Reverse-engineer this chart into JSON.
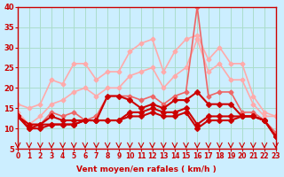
{
  "background_color": "#cceeff",
  "grid_color": "#aaddcc",
  "xlabel": "Vent moyen/en rafales ( km/h )",
  "xlim": [
    0,
    23
  ],
  "ylim": [
    5,
    40
  ],
  "yticks": [
    5,
    10,
    15,
    20,
    25,
    30,
    35,
    40
  ],
  "xticks": [
    0,
    1,
    2,
    3,
    4,
    5,
    6,
    7,
    8,
    9,
    10,
    11,
    12,
    13,
    14,
    15,
    16,
    17,
    18,
    19,
    20,
    21,
    22,
    23
  ],
  "series": [
    {
      "color": "#ffaaaa",
      "linewidth": 1.2,
      "marker": "D",
      "markersize": 2.5,
      "y": [
        16,
        15,
        16,
        22,
        21,
        26,
        26,
        22,
        24,
        24,
        29,
        31,
        32,
        24,
        29,
        32,
        33,
        27,
        30,
        26,
        26,
        18,
        14,
        13
      ]
    },
    {
      "color": "#ffaaaa",
      "linewidth": 1.2,
      "marker": "D",
      "markersize": 2.5,
      "y": [
        14,
        11,
        13,
        16,
        17,
        19,
        20,
        18,
        20,
        20,
        23,
        24,
        25,
        20,
        23,
        25,
        32,
        24,
        26,
        22,
        22,
        16,
        13,
        13
      ]
    },
    {
      "color": "#ee6666",
      "linewidth": 1.2,
      "marker": "D",
      "markersize": 2.5,
      "y": [
        13,
        11,
        11,
        14,
        13,
        14,
        12,
        13,
        18,
        18,
        18,
        17,
        18,
        16,
        18,
        19,
        40,
        18,
        19,
        19,
        14,
        14,
        12,
        9
      ]
    },
    {
      "color": "#cc0000",
      "linewidth": 1.5,
      "marker": "D",
      "markersize": 3,
      "y": [
        13,
        11,
        11,
        13,
        12,
        12,
        12,
        12,
        18,
        18,
        17,
        15,
        16,
        15,
        17,
        17,
        19,
        16,
        16,
        16,
        13,
        13,
        12,
        8
      ]
    },
    {
      "color": "#cc0000",
      "linewidth": 1.5,
      "marker": "D",
      "markersize": 3,
      "y": [
        13,
        10,
        11,
        11,
        11,
        11,
        12,
        12,
        12,
        12,
        14,
        14,
        15,
        14,
        14,
        15,
        11,
        13,
        13,
        13,
        13,
        13,
        12,
        8
      ]
    },
    {
      "color": "#cc0000",
      "linewidth": 1.5,
      "marker": "D",
      "markersize": 3,
      "y": [
        13,
        10,
        10,
        11,
        11,
        11,
        12,
        12,
        12,
        12,
        13,
        13,
        14,
        13,
        13,
        14,
        10,
        12,
        12,
        12,
        13,
        13,
        12,
        8
      ]
    }
  ]
}
